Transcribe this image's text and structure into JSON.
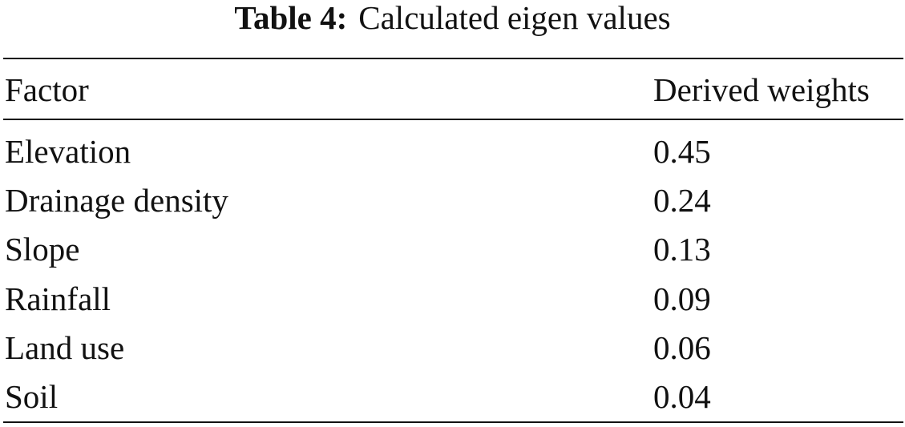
{
  "caption": {
    "label": "Table 4:",
    "text": "Calculated eigen values"
  },
  "table": {
    "header": [
      "Factor",
      "Derived weights"
    ],
    "rows": [
      [
        "Elevation",
        0.45
      ],
      [
        "Drainage density",
        0.24
      ],
      [
        "Slope",
        0.13
      ],
      [
        "Rainfall",
        0.09
      ],
      [
        "Land use",
        0.06
      ],
      [
        "Soil",
        0.04
      ]
    ]
  }
}
